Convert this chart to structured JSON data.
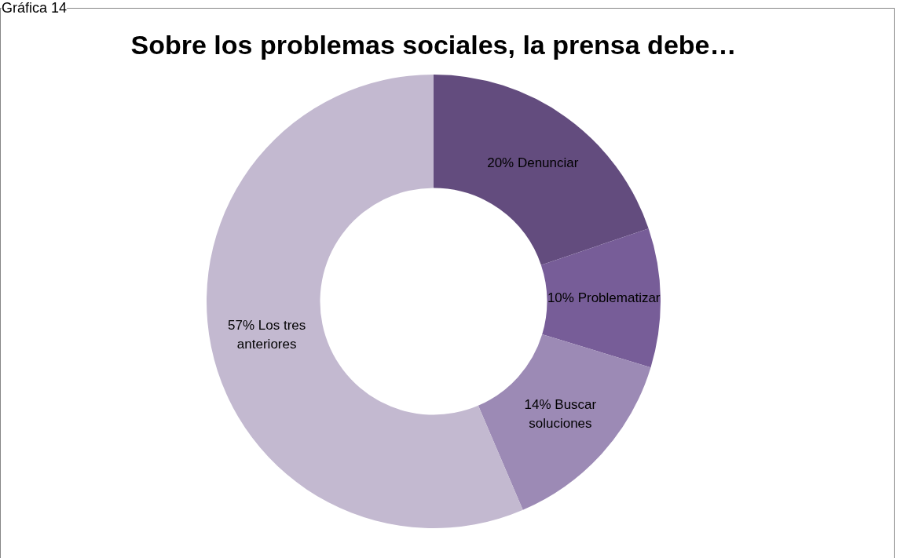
{
  "chart_data": {
    "type": "donut",
    "title": "Sobre los problemas sociales, la prensa debe…",
    "annotations": [
      "Gráfica 14"
    ],
    "categories": [
      "Denunciar",
      "Problematizar",
      "Buscar soluciones",
      "Los tres anteriores"
    ],
    "values": [
      20,
      10,
      14,
      57
    ],
    "colors": [
      "#634c7e",
      "#775d98",
      "#9c8ab5",
      "#c3b9d0"
    ],
    "value_labels": [
      "20%",
      "10%",
      "14%",
      "57%"
    ],
    "legend": false
  }
}
